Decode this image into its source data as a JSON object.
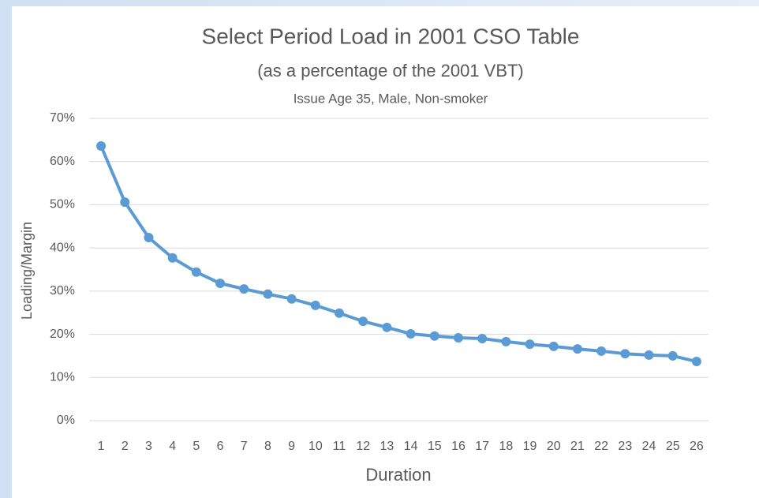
{
  "chart_data": {
    "type": "line",
    "title": "Select Period Load in 2001 CSO Table",
    "subtitle": "(as a percentage of the 2001 VBT)",
    "note": "Issue Age 35, Male, Non-smoker",
    "x_label": "Duration",
    "y_label": "Loading/Margin",
    "categories": [
      "1",
      "2",
      "3",
      "4",
      "5",
      "6",
      "7",
      "8",
      "9",
      "10",
      "11",
      "12",
      "13",
      "14",
      "15",
      "16",
      "17",
      "18",
      "19",
      "20",
      "21",
      "22",
      "23",
      "24",
      "25",
      "26"
    ],
    "series": [
      {
        "name": "Select Period Load",
        "color": "#5b9bd5",
        "values": [
          63.6,
          50.6,
          42.4,
          37.7,
          34.4,
          31.8,
          30.5,
          29.3,
          28.2,
          26.7,
          24.9,
          23.0,
          21.6,
          20.1,
          19.6,
          19.2,
          19.0,
          18.3,
          17.7,
          17.2,
          16.6,
          16.1,
          15.5,
          15.2,
          15.0,
          13.7
        ]
      }
    ],
    "ylim": [
      0,
      70
    ],
    "yticks": [
      {
        "value": 0,
        "label": "0%"
      },
      {
        "value": 10,
        "label": "10%"
      },
      {
        "value": 20,
        "label": "20%"
      },
      {
        "value": 30,
        "label": "30%"
      },
      {
        "value": 40,
        "label": "40%"
      },
      {
        "value": 50,
        "label": "50%"
      },
      {
        "value": 60,
        "label": "60%"
      },
      {
        "value": 70,
        "label": "70%"
      }
    ],
    "grid": true
  }
}
